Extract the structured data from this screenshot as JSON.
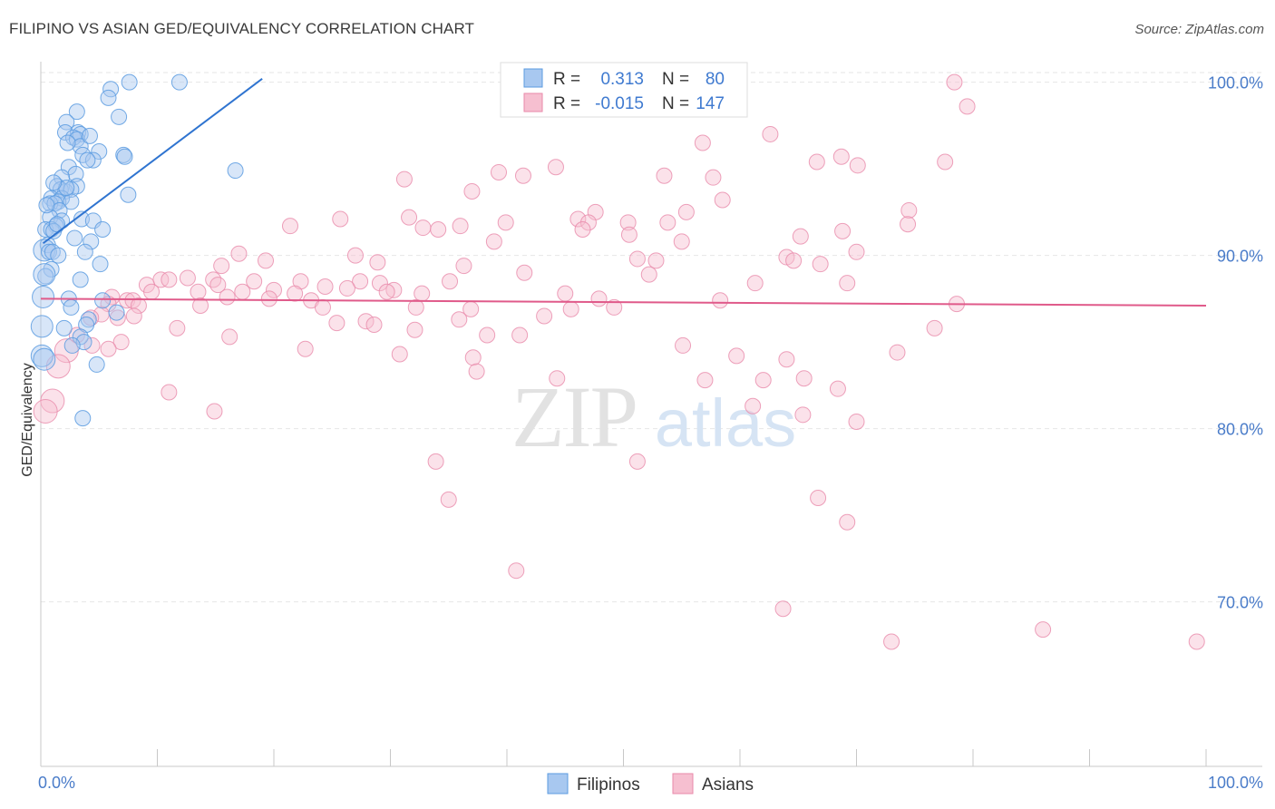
{
  "title": "FILIPINO VS ASIAN GED/EQUIVALENCY CORRELATION CHART",
  "source": "Source: ZipAtlas.com",
  "colors": {
    "blue": "#5b9be0",
    "blue_fill": "#a8c8f0",
    "blue_line": "#2f74d0",
    "pink": "#e88aaa",
    "pink_fill": "#f6bfd0",
    "pink_line": "#e05a8a",
    "text_blue": "#3f7ad0"
  },
  "legend": {
    "r_label": "R =",
    "n_label": "N =",
    "rows": [
      {
        "series": "Filipinos",
        "r": "0.313",
        "n": "80"
      },
      {
        "series": "Asians",
        "r": "-0.015",
        "n": "147"
      }
    ]
  },
  "bottom_legend": [
    "Filipinos",
    "Asians"
  ],
  "watermark": {
    "zip": "ZIP",
    "atlas": "atlas"
  },
  "chart_data": {
    "type": "scatter",
    "title": "FILIPINO VS ASIAN GED/EQUIVALENCY CORRELATION CHART",
    "xlabel": "",
    "ylabel": "GED/Equivalency",
    "xlim": [
      0,
      100
    ],
    "ylim": [
      60.5,
      101.5
    ],
    "x_tick_labels": [
      "0.0%",
      "100.0%"
    ],
    "y_ticks": [
      70,
      80,
      90,
      100
    ],
    "y_tick_labels": [
      "70.0%",
      "80.0%",
      "90.0%",
      "100.0%"
    ],
    "grid": true,
    "series": [
      {
        "name": "Filipinos",
        "r": 0.313,
        "n": 80,
        "trend": {
          "x": [
            0.2,
            19.0
          ],
          "y": [
            90.7,
            100.2
          ]
        },
        "points": [
          {
            "x": 7.6,
            "y": 100.0
          },
          {
            "x": 11.9,
            "y": 100.0
          },
          {
            "x": 6.0,
            "y": 99.6
          },
          {
            "x": 5.8,
            "y": 99.1
          },
          {
            "x": 3.1,
            "y": 98.3
          },
          {
            "x": 6.7,
            "y": 98.0
          },
          {
            "x": 2.2,
            "y": 97.7
          },
          {
            "x": 2.1,
            "y": 97.1
          },
          {
            "x": 3.2,
            "y": 97.1
          },
          {
            "x": 3.4,
            "y": 97.0
          },
          {
            "x": 2.8,
            "y": 96.8
          },
          {
            "x": 3.1,
            "y": 96.7
          },
          {
            "x": 3.4,
            "y": 96.3
          },
          {
            "x": 2.3,
            "y": 96.5
          },
          {
            "x": 5.0,
            "y": 96.0
          },
          {
            "x": 7.1,
            "y": 95.8
          },
          {
            "x": 3.6,
            "y": 95.8
          },
          {
            "x": 7.2,
            "y": 95.7
          },
          {
            "x": 4.5,
            "y": 95.5
          },
          {
            "x": 4.0,
            "y": 95.5
          },
          {
            "x": 2.4,
            "y": 95.1
          },
          {
            "x": 16.7,
            "y": 94.9
          },
          {
            "x": 3.0,
            "y": 94.7
          },
          {
            "x": 1.8,
            "y": 94.5
          },
          {
            "x": 1.4,
            "y": 94.0
          },
          {
            "x": 3.1,
            "y": 94.0
          },
          {
            "x": 2.1,
            "y": 93.7
          },
          {
            "x": 1.7,
            "y": 93.8
          },
          {
            "x": 2.6,
            "y": 93.8
          },
          {
            "x": 7.5,
            "y": 93.5
          },
          {
            "x": 0.9,
            "y": 93.3
          },
          {
            "x": 1.8,
            "y": 93.3
          },
          {
            "x": 1.5,
            "y": 93.1
          },
          {
            "x": 2.6,
            "y": 93.1
          },
          {
            "x": 0.8,
            "y": 93.0
          },
          {
            "x": 1.2,
            "y": 93.0
          },
          {
            "x": 1.6,
            "y": 92.6
          },
          {
            "x": 0.8,
            "y": 92.2
          },
          {
            "x": 3.5,
            "y": 92.1
          },
          {
            "x": 1.8,
            "y": 92.0
          },
          {
            "x": 4.5,
            "y": 92.0
          },
          {
            "x": 1.3,
            "y": 91.7
          },
          {
            "x": 0.4,
            "y": 91.5
          },
          {
            "x": 0.9,
            "y": 91.5
          },
          {
            "x": 1.1,
            "y": 91.4
          },
          {
            "x": 5.3,
            "y": 91.5
          },
          {
            "x": 2.9,
            "y": 91.0
          },
          {
            "x": 4.3,
            "y": 90.8
          },
          {
            "x": 0.6,
            "y": 90.6
          },
          {
            "x": 0.3,
            "y": 90.3
          },
          {
            "x": 0.7,
            "y": 90.2
          },
          {
            "x": 1.0,
            "y": 90.2
          },
          {
            "x": 3.8,
            "y": 90.2
          },
          {
            "x": 1.5,
            "y": 90.0
          },
          {
            "x": 5.1,
            "y": 89.5
          },
          {
            "x": 0.9,
            "y": 89.2
          },
          {
            "x": 0.4,
            "y": 88.8
          },
          {
            "x": 3.4,
            "y": 88.6
          },
          {
            "x": 0.2,
            "y": 87.6
          },
          {
            "x": 2.4,
            "y": 87.5
          },
          {
            "x": 2.6,
            "y": 87.0
          },
          {
            "x": 5.3,
            "y": 87.4
          },
          {
            "x": 6.5,
            "y": 86.7
          },
          {
            "x": 4.1,
            "y": 86.3
          },
          {
            "x": 3.9,
            "y": 86.0
          },
          {
            "x": 0.1,
            "y": 85.9
          },
          {
            "x": 2.0,
            "y": 85.8
          },
          {
            "x": 3.4,
            "y": 85.3
          },
          {
            "x": 3.7,
            "y": 85.0
          },
          {
            "x": 2.7,
            "y": 84.8
          },
          {
            "x": 0.1,
            "y": 84.2
          },
          {
            "x": 0.3,
            "y": 84.0
          },
          {
            "x": 4.8,
            "y": 83.7
          },
          {
            "x": 3.6,
            "y": 80.6
          },
          {
            "x": 0.3,
            "y": 88.9
          },
          {
            "x": 1.4,
            "y": 91.8
          },
          {
            "x": 2.2,
            "y": 93.9
          },
          {
            "x": 4.2,
            "y": 96.9
          },
          {
            "x": 1.1,
            "y": 94.2
          },
          {
            "x": 0.5,
            "y": 92.9
          }
        ]
      },
      {
        "name": "Asians",
        "r": -0.015,
        "n": 147,
        "trend": {
          "x": [
            0.0,
            100.0
          ],
          "y": [
            87.5,
            87.1
          ]
        },
        "points": [
          {
            "x": 78.4,
            "y": 100.0
          },
          {
            "x": 79.5,
            "y": 98.6
          },
          {
            "x": 62.6,
            "y": 97.0
          },
          {
            "x": 56.8,
            "y": 96.5
          },
          {
            "x": 68.7,
            "y": 95.7
          },
          {
            "x": 66.6,
            "y": 95.4
          },
          {
            "x": 77.6,
            "y": 95.4
          },
          {
            "x": 70.1,
            "y": 95.2
          },
          {
            "x": 44.2,
            "y": 95.1
          },
          {
            "x": 39.3,
            "y": 94.8
          },
          {
            "x": 53.5,
            "y": 94.6
          },
          {
            "x": 57.7,
            "y": 94.5
          },
          {
            "x": 41.4,
            "y": 94.6
          },
          {
            "x": 31.2,
            "y": 94.4
          },
          {
            "x": 37.0,
            "y": 93.7
          },
          {
            "x": 58.5,
            "y": 93.2
          },
          {
            "x": 74.5,
            "y": 92.6
          },
          {
            "x": 55.4,
            "y": 92.5
          },
          {
            "x": 47.6,
            "y": 92.5
          },
          {
            "x": 31.6,
            "y": 92.2
          },
          {
            "x": 25.7,
            "y": 92.1
          },
          {
            "x": 46.1,
            "y": 92.1
          },
          {
            "x": 47.0,
            "y": 91.9
          },
          {
            "x": 53.8,
            "y": 91.9
          },
          {
            "x": 50.4,
            "y": 91.9
          },
          {
            "x": 39.9,
            "y": 91.9
          },
          {
            "x": 36.0,
            "y": 91.7
          },
          {
            "x": 21.4,
            "y": 91.7
          },
          {
            "x": 32.8,
            "y": 91.6
          },
          {
            "x": 34.1,
            "y": 91.5
          },
          {
            "x": 46.5,
            "y": 91.5
          },
          {
            "x": 68.8,
            "y": 91.4
          },
          {
            "x": 50.5,
            "y": 91.2
          },
          {
            "x": 65.2,
            "y": 91.1
          },
          {
            "x": 38.9,
            "y": 90.8
          },
          {
            "x": 55.0,
            "y": 90.8
          },
          {
            "x": 70.0,
            "y": 90.2
          },
          {
            "x": 17.0,
            "y": 90.1
          },
          {
            "x": 27.0,
            "y": 90.0
          },
          {
            "x": 64.0,
            "y": 89.9
          },
          {
            "x": 51.2,
            "y": 89.8
          },
          {
            "x": 64.6,
            "y": 89.7
          },
          {
            "x": 52.8,
            "y": 89.7
          },
          {
            "x": 28.9,
            "y": 89.6
          },
          {
            "x": 19.3,
            "y": 89.7
          },
          {
            "x": 15.5,
            "y": 89.4
          },
          {
            "x": 36.3,
            "y": 89.4
          },
          {
            "x": 41.5,
            "y": 89.0
          },
          {
            "x": 52.2,
            "y": 88.9
          },
          {
            "x": 12.6,
            "y": 88.7
          },
          {
            "x": 10.3,
            "y": 88.6
          },
          {
            "x": 14.8,
            "y": 88.6
          },
          {
            "x": 11.0,
            "y": 88.6
          },
          {
            "x": 27.4,
            "y": 88.5
          },
          {
            "x": 35.1,
            "y": 88.5
          },
          {
            "x": 18.3,
            "y": 88.5
          },
          {
            "x": 22.3,
            "y": 88.5
          },
          {
            "x": 29.1,
            "y": 88.4
          },
          {
            "x": 9.1,
            "y": 88.3
          },
          {
            "x": 15.2,
            "y": 88.3
          },
          {
            "x": 61.3,
            "y": 88.4
          },
          {
            "x": 26.3,
            "y": 88.1
          },
          {
            "x": 24.4,
            "y": 88.2
          },
          {
            "x": 20.0,
            "y": 88.0
          },
          {
            "x": 30.3,
            "y": 88.0
          },
          {
            "x": 29.7,
            "y": 87.9
          },
          {
            "x": 13.5,
            "y": 87.9
          },
          {
            "x": 17.3,
            "y": 87.9
          },
          {
            "x": 9.5,
            "y": 87.9
          },
          {
            "x": 21.8,
            "y": 87.8
          },
          {
            "x": 32.7,
            "y": 87.8
          },
          {
            "x": 6.1,
            "y": 87.6
          },
          {
            "x": 16.0,
            "y": 87.6
          },
          {
            "x": 7.4,
            "y": 87.4
          },
          {
            "x": 7.9,
            "y": 87.4
          },
          {
            "x": 8.4,
            "y": 87.1
          },
          {
            "x": 5.8,
            "y": 87.2
          },
          {
            "x": 19.6,
            "y": 87.5
          },
          {
            "x": 23.2,
            "y": 87.4
          },
          {
            "x": 13.7,
            "y": 87.1
          },
          {
            "x": 24.2,
            "y": 87.0
          },
          {
            "x": 32.2,
            "y": 87.0
          },
          {
            "x": 49.2,
            "y": 87.0
          },
          {
            "x": 36.9,
            "y": 86.9
          },
          {
            "x": 45.5,
            "y": 86.9
          },
          {
            "x": 43.2,
            "y": 86.5
          },
          {
            "x": 35.9,
            "y": 86.3
          },
          {
            "x": 27.9,
            "y": 86.2
          },
          {
            "x": 28.6,
            "y": 86.0
          },
          {
            "x": 5.2,
            "y": 86.6
          },
          {
            "x": 6.6,
            "y": 86.4
          },
          {
            "x": 4.3,
            "y": 86.4
          },
          {
            "x": 8.0,
            "y": 86.5
          },
          {
            "x": 25.4,
            "y": 86.1
          },
          {
            "x": 32.1,
            "y": 85.7
          },
          {
            "x": 38.3,
            "y": 85.4
          },
          {
            "x": 41.1,
            "y": 85.4
          },
          {
            "x": 3.1,
            "y": 85.4
          },
          {
            "x": 6.9,
            "y": 85.0
          },
          {
            "x": 11.7,
            "y": 85.8
          },
          {
            "x": 16.2,
            "y": 85.3
          },
          {
            "x": 22.7,
            "y": 84.6
          },
          {
            "x": 30.8,
            "y": 84.3
          },
          {
            "x": 37.1,
            "y": 84.1
          },
          {
            "x": 59.7,
            "y": 84.2
          },
          {
            "x": 55.1,
            "y": 84.8
          },
          {
            "x": 64.0,
            "y": 84.0
          },
          {
            "x": 76.7,
            "y": 85.8
          },
          {
            "x": 5.8,
            "y": 84.6
          },
          {
            "x": 4.4,
            "y": 84.8
          },
          {
            "x": 2.2,
            "y": 84.5
          },
          {
            "x": 1.5,
            "y": 83.6
          },
          {
            "x": 37.4,
            "y": 83.3
          },
          {
            "x": 44.3,
            "y": 82.9
          },
          {
            "x": 57.0,
            "y": 82.8
          },
          {
            "x": 62.0,
            "y": 82.8
          },
          {
            "x": 65.5,
            "y": 82.9
          },
          {
            "x": 68.4,
            "y": 82.3
          },
          {
            "x": 11.0,
            "y": 82.1
          },
          {
            "x": 1.0,
            "y": 81.6
          },
          {
            "x": 0.4,
            "y": 81.0
          },
          {
            "x": 14.9,
            "y": 81.0
          },
          {
            "x": 61.1,
            "y": 81.3
          },
          {
            "x": 65.4,
            "y": 80.8
          },
          {
            "x": 70.0,
            "y": 80.4
          },
          {
            "x": 33.9,
            "y": 78.1
          },
          {
            "x": 51.2,
            "y": 78.1
          },
          {
            "x": 35.0,
            "y": 75.9
          },
          {
            "x": 66.7,
            "y": 76.0
          },
          {
            "x": 69.2,
            "y": 74.6
          },
          {
            "x": 40.8,
            "y": 71.8
          },
          {
            "x": 63.7,
            "y": 69.6
          },
          {
            "x": 73.0,
            "y": 67.7
          },
          {
            "x": 86.0,
            "y": 68.4
          },
          {
            "x": 99.2,
            "y": 67.7
          },
          {
            "x": 69.2,
            "y": 88.4
          },
          {
            "x": 74.4,
            "y": 91.8
          },
          {
            "x": 73.5,
            "y": 84.4
          },
          {
            "x": 66.9,
            "y": 89.5
          },
          {
            "x": 78.6,
            "y": 87.2
          },
          {
            "x": 58.3,
            "y": 87.4
          },
          {
            "x": 47.9,
            "y": 87.5
          },
          {
            "x": 45.0,
            "y": 87.8
          }
        ]
      }
    ]
  }
}
